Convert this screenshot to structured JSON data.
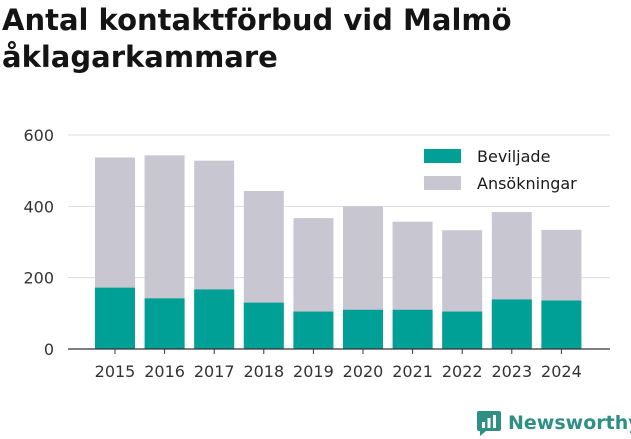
{
  "title": "Antal kontaktförbud vid Malmö åklagarkammare",
  "chart_data": {
    "type": "bar",
    "stacking": "overlay",
    "categories": [
      "2015",
      "2016",
      "2017",
      "2018",
      "2019",
      "2020",
      "2021",
      "2022",
      "2023",
      "2024"
    ],
    "series": [
      {
        "name": "Beviljade",
        "color": "#00a096",
        "values": [
          172,
          142,
          167,
          130,
          105,
          110,
          110,
          105,
          139,
          136
        ]
      },
      {
        "name": "Ansökningar",
        "color": "#c8c7d1",
        "values": [
          537,
          543,
          528,
          443,
          367,
          400,
          357,
          333,
          384,
          334
        ]
      }
    ],
    "legend_order": [
      "Beviljade",
      "Ansökningar"
    ],
    "legend_position": "top-right",
    "ylim": [
      0,
      600
    ],
    "yticks": [
      0,
      200,
      400,
      600
    ],
    "grid": true,
    "xlabel": "",
    "ylabel": ""
  },
  "logo": {
    "text": "Newsworthy",
    "icon": "newsworthy-logo-icon",
    "color": "#2f8f84"
  }
}
